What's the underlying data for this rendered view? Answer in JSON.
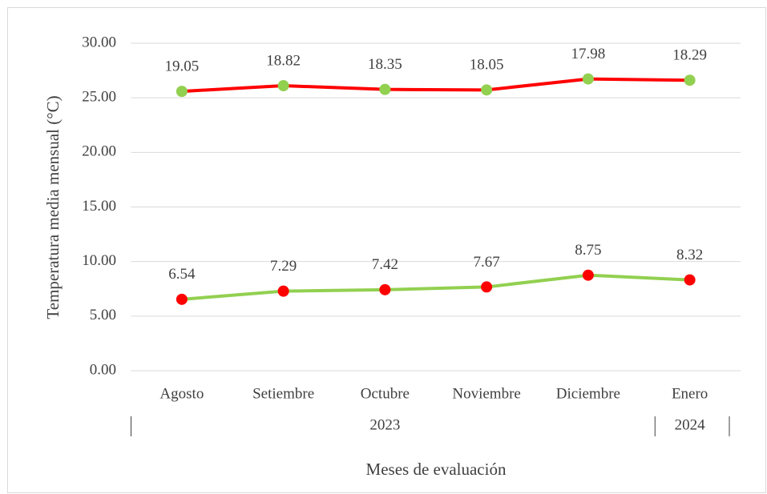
{
  "chart_data": {
    "type": "line",
    "stacked": true,
    "y_label": "Temperatura media mensual (°C)",
    "x_label": "Meses de evaluación",
    "categories": [
      "Agosto",
      "Setiembre",
      "Octubre",
      "Noviembre",
      "Diciembre",
      "Enero"
    ],
    "x_groups": [
      {
        "label": "2023",
        "span": 5
      },
      {
        "label": "2024",
        "span": 1
      }
    ],
    "series": [
      {
        "color": "#92d050",
        "marker_color": "#ff0000",
        "values": [
          6.54,
          7.29,
          7.42,
          7.67,
          8.75,
          8.32
        ]
      },
      {
        "color": "#ff0000",
        "marker_color": "#92d050",
        "values": [
          19.05,
          18.82,
          18.35,
          18.05,
          17.98,
          18.29
        ]
      }
    ],
    "ylim": [
      0,
      30
    ],
    "yticks": [
      {
        "value": 0,
        "label": "0.00"
      },
      {
        "value": 5,
        "label": "5.00"
      },
      {
        "value": 10,
        "label": "10.00"
      },
      {
        "value": 15,
        "label": "15.00"
      },
      {
        "value": 20,
        "label": "20.00"
      },
      {
        "value": 25,
        "label": "25.00"
      },
      {
        "value": 30,
        "label": "30.00"
      }
    ],
    "grid": true
  }
}
